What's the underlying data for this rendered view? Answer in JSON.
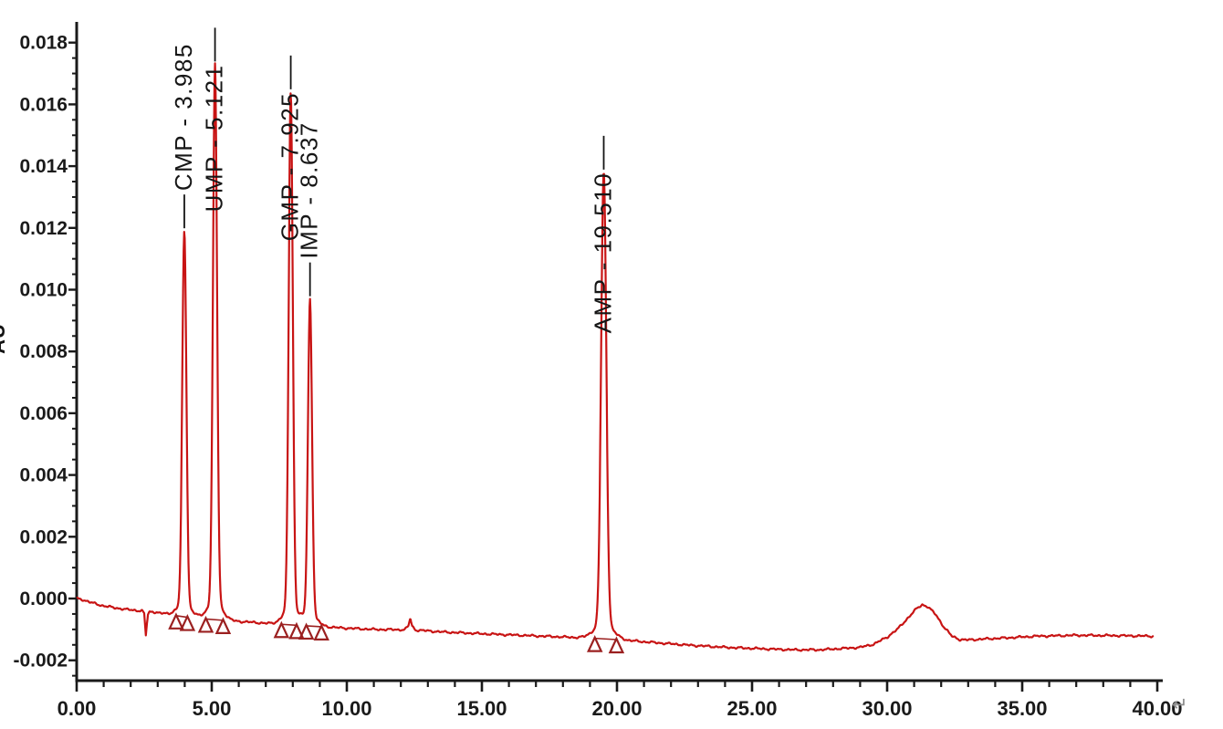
{
  "page": {
    "return_mark": "↵"
  },
  "chart_data": {
    "type": "line",
    "title": "",
    "xlabel": "",
    "ylabel": "AU",
    "trace_color": "#c81414",
    "marker_color": "#9b2020",
    "axis_color": "#1a1a1a",
    "label_color": "#161616",
    "x_axis": {
      "min": 0,
      "max": 40,
      "major_step": 5,
      "minor_step": 1,
      "tick_labels": [
        "0.00",
        "5.00",
        "10.00",
        "15.00",
        "20.00",
        "25.00",
        "30.00",
        "35.00",
        "40.00"
      ]
    },
    "y_axis": {
      "min": -0.002,
      "max": 0.018,
      "major_step": 0.002,
      "minor_step": 0.0005,
      "tick_labels": [
        "-0.002",
        "0.000",
        "0.002",
        "0.004",
        "0.006",
        "0.008",
        "0.010",
        "0.012",
        "0.014",
        "0.016",
        "0.018"
      ]
    },
    "peaks": [
      {
        "name": "CMP",
        "label": "CMP - 3.985",
        "rt": 3.985,
        "apex_au": 0.0119,
        "sigma_min": 0.075,
        "int_start": 3.68,
        "int_end": 4.1
      },
      {
        "name": "UMP",
        "label": "UMP - 5.121",
        "rt": 5.121,
        "apex_au": 0.0173,
        "sigma_min": 0.075,
        "int_start": 4.78,
        "int_end": 5.42
      },
      {
        "name": "GMP",
        "label": "GMP - 7.925",
        "rt": 7.925,
        "apex_au": 0.0164,
        "sigma_min": 0.075,
        "int_start": 7.58,
        "int_end": 8.14
      },
      {
        "name": "IMP",
        "label": "IMP - 8.637",
        "rt": 8.637,
        "apex_au": 0.0097,
        "sigma_min": 0.075,
        "int_start": 8.5,
        "int_end": 9.06
      },
      {
        "name": "AMP",
        "label": "AMP - 19.510",
        "rt": 19.51,
        "apex_au": 0.0138,
        "sigma_min": 0.095,
        "int_start": 19.18,
        "int_end": 19.98
      }
    ],
    "baseline_points": [
      [
        0,
        0
      ],
      [
        0.2,
        -3e-05
      ],
      [
        0.5,
        -0.00012
      ],
      [
        0.9,
        -0.00022
      ],
      [
        1.4,
        -0.0003
      ],
      [
        1.9,
        -0.00036
      ],
      [
        2.42,
        -0.0004
      ],
      [
        2.5,
        -0.00048
      ],
      [
        2.53,
        -0.00085
      ],
      [
        2.56,
        -0.0012
      ],
      [
        2.6,
        -0.0008
      ],
      [
        2.64,
        -0.00052
      ],
      [
        2.7,
        -0.00044
      ],
      [
        2.8,
        -0.00042
      ],
      [
        3.0,
        -0.00046
      ],
      [
        3.5,
        -0.00053
      ],
      [
        4.0,
        -0.0006
      ],
      [
        4.5,
        -0.00064
      ],
      [
        5.0,
        -0.00068
      ],
      [
        5.5,
        -0.00071
      ],
      [
        6.0,
        -0.00074
      ],
      [
        7.0,
        -0.0008
      ],
      [
        8.0,
        -0.00086
      ],
      [
        9.0,
        -0.00091
      ],
      [
        10.0,
        -0.00096
      ],
      [
        11.0,
        -0.001
      ],
      [
        12.15,
        -0.00101
      ],
      [
        12.28,
        -0.00088
      ],
      [
        12.35,
        -0.00063
      ],
      [
        12.42,
        -0.0009
      ],
      [
        12.55,
        -0.00102
      ],
      [
        13.5,
        -0.00108
      ],
      [
        15.0,
        -0.00114
      ],
      [
        17.0,
        -0.00121
      ],
      [
        19.0,
        -0.00128
      ],
      [
        20.0,
        -0.00133
      ],
      [
        21.0,
        -0.0014
      ],
      [
        22.5,
        -0.0015
      ],
      [
        24.0,
        -0.00158
      ],
      [
        25.5,
        -0.00163
      ],
      [
        26.5,
        -0.00166
      ],
      [
        27.5,
        -0.00166
      ],
      [
        28.5,
        -0.00161
      ],
      [
        29.0,
        -0.00158
      ],
      [
        29.5,
        -0.00148
      ],
      [
        30.0,
        -0.00125
      ],
      [
        30.4,
        -0.00098
      ],
      [
        30.8,
        -0.0006
      ],
      [
        31.1,
        -0.00032
      ],
      [
        31.3,
        -0.0002
      ],
      [
        31.5,
        -0.00026
      ],
      [
        31.8,
        -0.00052
      ],
      [
        32.1,
        -0.00092
      ],
      [
        32.4,
        -0.00122
      ],
      [
        32.7,
        -0.00133
      ],
      [
        33.0,
        -0.00134
      ],
      [
        33.6,
        -0.00131
      ],
      [
        34.5,
        -0.00127
      ],
      [
        35.5,
        -0.00122
      ],
      [
        37.0,
        -0.00119
      ],
      [
        38.5,
        -0.0012
      ],
      [
        39.9,
        -0.00122
      ]
    ],
    "artifacts": [
      {
        "type": "negative_dip",
        "t": 2.56,
        "apex_au": -0.0012
      },
      {
        "type": "small_bump",
        "t": 12.35,
        "apex_au": -0.00063
      },
      {
        "type": "broad_hump",
        "t": 31.3,
        "apex_au": -0.0002
      }
    ],
    "legend": null,
    "grid": false
  }
}
